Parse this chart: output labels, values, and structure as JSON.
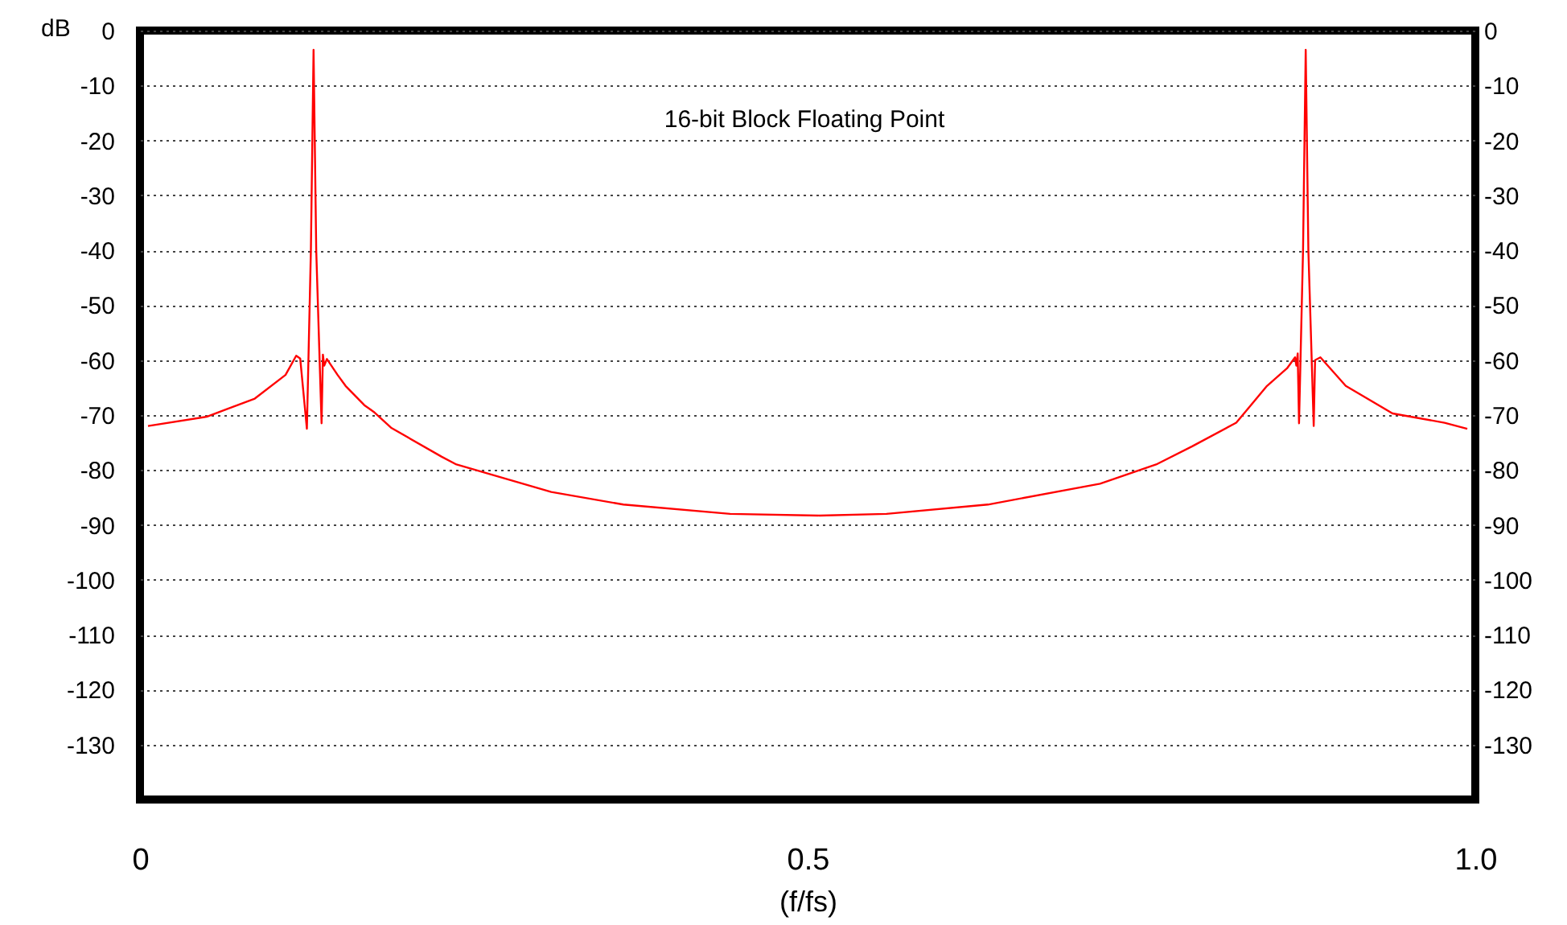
{
  "chart_data": {
    "type": "line",
    "xlabel": "(f/fs)",
    "ylabel": "dB",
    "annotations": [
      "16-bit Block Floating Point"
    ],
    "x": [
      0.006,
      0.05,
      0.086,
      0.109,
      0.117,
      0.12,
      0.125,
      0.128,
      0.13,
      0.132,
      0.136,
      0.137,
      0.138,
      0.14,
      0.148,
      0.154,
      0.168,
      0.175,
      0.188,
      0.226,
      0.237,
      0.308,
      0.362,
      0.442,
      0.509,
      0.559,
      0.635,
      0.719,
      0.761,
      0.788,
      0.821,
      0.844,
      0.859,
      0.865,
      0.866,
      0.867,
      0.868,
      0.871,
      0.873,
      0.875,
      0.879,
      0.88,
      0.884,
      0.903,
      0.938,
      0.977,
      0.994
    ],
    "series": [
      {
        "color": "#ff0000",
        "values": [
          -72,
          -70.3,
          -67,
          -62.7,
          -59.2,
          -59.7,
          -72.5,
          -40,
          -3.5,
          -40,
          -71.5,
          -59,
          -61,
          -59.8,
          -62.7,
          -64.7,
          -68.2,
          -69.4,
          -72.3,
          -77.6,
          -79,
          -84,
          -86.3,
          -88,
          -88.3,
          -88,
          -86.3,
          -82.5,
          -79,
          -75.7,
          -71.4,
          -64.7,
          -61.5,
          -59.5,
          -61,
          -58.8,
          -71.5,
          -40,
          -3.5,
          -40,
          -72,
          -60,
          -59.5,
          -64.7,
          -69.7,
          -71.4,
          -72.5
        ]
      }
    ],
    "xlim": [
      0,
      1
    ],
    "xticks": [
      0,
      0.5,
      {
        "value": 1,
        "label": "1.0"
      }
    ],
    "ylim": [
      -140,
      0
    ],
    "yticks": [
      0,
      -10,
      -20,
      -30,
      -40,
      -50,
      -60,
      -70,
      -80,
      -90,
      -100,
      -110,
      -120,
      -130
    ],
    "y2lim": [
      -140,
      0
    ],
    "y2ticks": [
      0,
      -10,
      -20,
      -30,
      -40,
      -50,
      -60,
      -70,
      -80,
      -90,
      -100,
      -110,
      -120,
      -130
    ],
    "grid": "y",
    "marker": "none",
    "line_style": "solid"
  }
}
